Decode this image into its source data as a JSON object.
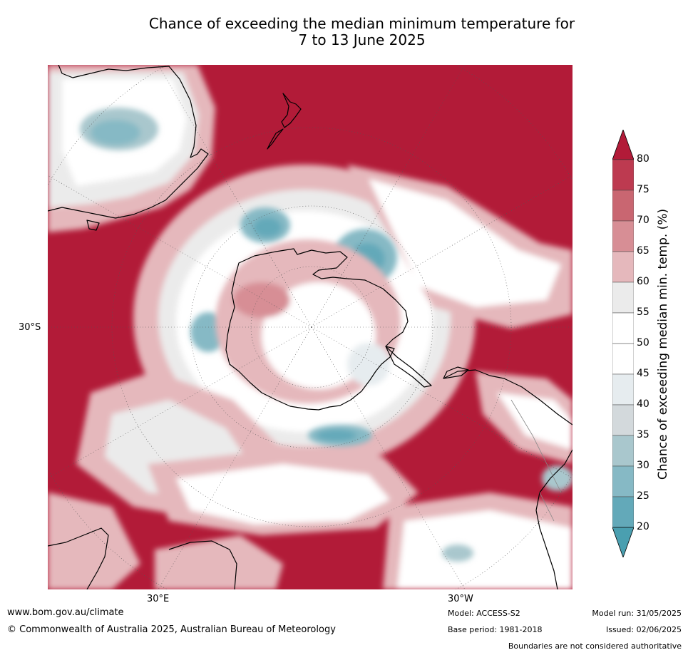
{
  "title": {
    "line1": "Chance of exceeding the median minimum temperature for",
    "line2": "7 to 13 June 2025"
  },
  "map": {
    "projection": "south-polar-stereographic",
    "lat_label_left": "30°S",
    "lon_label_left": "30°E",
    "lon_label_right": "30°W",
    "colors": {
      "ocean_dominant": "#b21b38",
      "land_outline": "#000000"
    }
  },
  "colorbar": {
    "title": "Chance of exceeding median min. temp. (%)",
    "ticks": [
      "80",
      "75",
      "70",
      "65",
      "60",
      "55",
      "50",
      "45",
      "40",
      "35",
      "30",
      "25",
      "20"
    ],
    "extend": "both",
    "colors": {
      "over80": "#b21b38",
      "75_80": "#bd3a50",
      "70_75": "#c96671",
      "65_70": "#d78e95",
      "60_65": "#e5b8bc",
      "55_60": "#ebebeb",
      "50_55": "#ffffff",
      "45_50": "#ffffff",
      "40_45": "#e6ecef",
      "35_40": "#d3d9dc",
      "30_35": "#a9c7cd",
      "25_30": "#86b9c5",
      "20_25": "#63a9b9",
      "under20": "#4a9fb0"
    }
  },
  "footer": {
    "website": "www.bom.gov.au/climate",
    "copyright": "© Commonwealth of Australia 2025, Australian Bureau of Meteorology",
    "model": "Model: ACCESS-S2",
    "base_period": "Base period: 1981-2018",
    "model_run": "Model run: 31/05/2025",
    "issued": "Issued: 02/06/2025",
    "disclaimer": "Boundaries are not considered authoritative"
  }
}
